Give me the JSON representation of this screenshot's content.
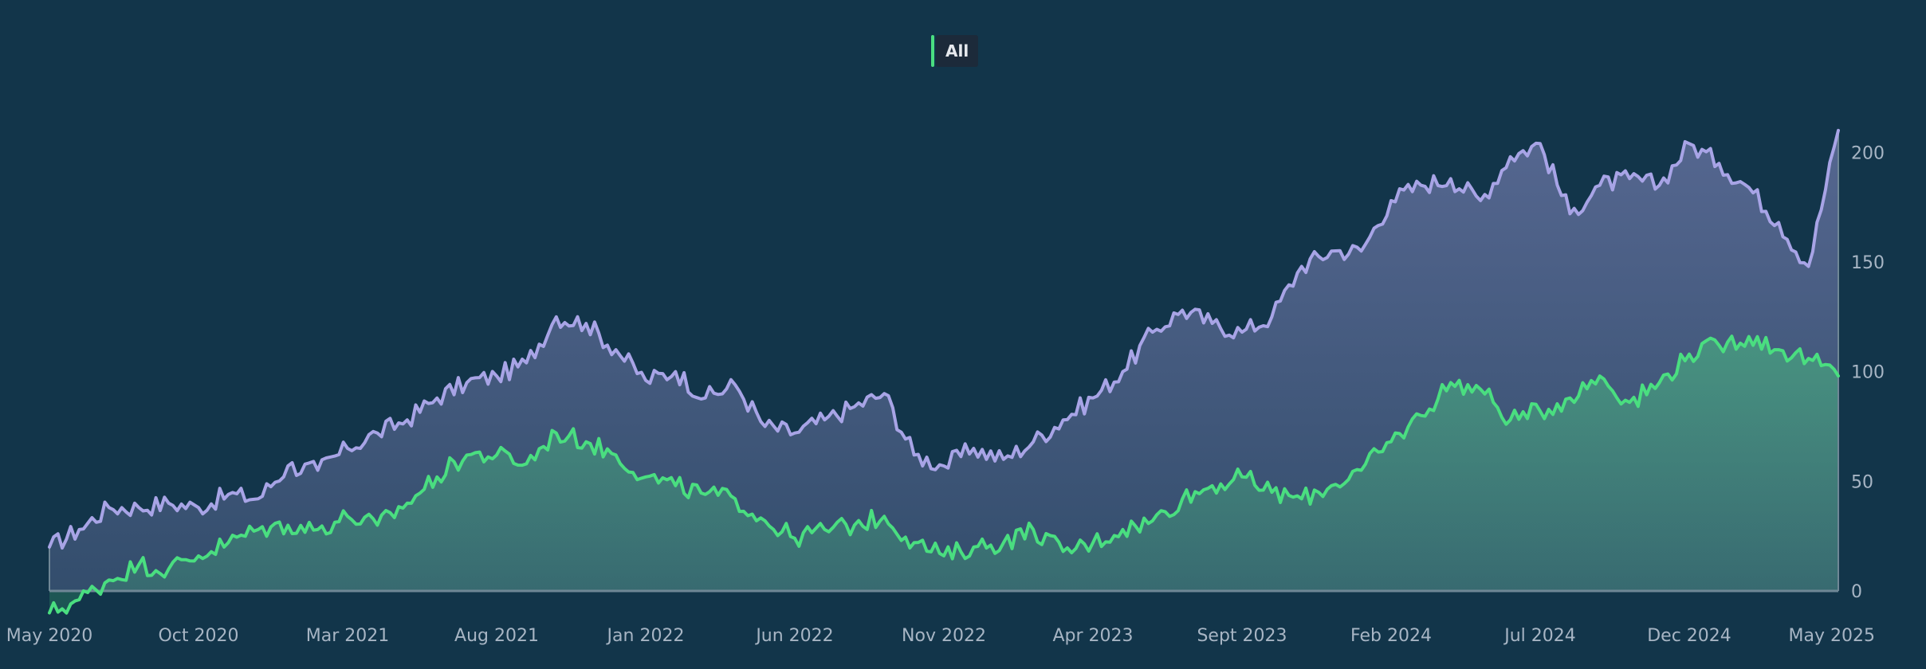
{
  "legend": {
    "label": "All"
  },
  "chart_data": {
    "type": "area",
    "title": "",
    "xlabel": "",
    "ylabel": "",
    "x_tick_labels": [
      "May 2020",
      "Oct 2020",
      "Mar 2021",
      "Aug 2021",
      "Jan 2022",
      "Jun 2022",
      "Nov 2022",
      "Apr 2023",
      "Sept 2023",
      "Feb 2024",
      "Jul 2024",
      "Dec 2024",
      "May 2025"
    ],
    "y_ticks": [
      0,
      50,
      100,
      150,
      200
    ],
    "ylim": [
      -12,
      215
    ],
    "y_axis_side": "right",
    "grid": false,
    "legend_position": "top-center",
    "colors": {
      "background": "#12354a",
      "series_1_line": "#a8a4e6",
      "series_2_line": "#4ade80",
      "axis_line": "#6f8796",
      "tick_text": "#a7b5c4"
    },
    "x": [
      "2020-05",
      "2020-06",
      "2020-07",
      "2020-08",
      "2020-09",
      "2020-10",
      "2020-11",
      "2020-12",
      "2021-01",
      "2021-02",
      "2021-03",
      "2021-04",
      "2021-05",
      "2021-06",
      "2021-07",
      "2021-08",
      "2021-09",
      "2021-10",
      "2021-11",
      "2021-12",
      "2022-01",
      "2022-02",
      "2022-03",
      "2022-04",
      "2022-05",
      "2022-06",
      "2022-07",
      "2022-08",
      "2022-09",
      "2022-10",
      "2022-11",
      "2022-12",
      "2023-01",
      "2023-02",
      "2023-03",
      "2023-04",
      "2023-05",
      "2023-06",
      "2023-07",
      "2023-08",
      "2023-09",
      "2023-10",
      "2023-11",
      "2023-12",
      "2024-01",
      "2024-02",
      "2024-03",
      "2024-04",
      "2024-05",
      "2024-06",
      "2024-07",
      "2024-08",
      "2024-09",
      "2024-10",
      "2024-11",
      "2024-12",
      "2025-01",
      "2025-02",
      "2025-03",
      "2025-04",
      "2025-05"
    ],
    "series": [
      {
        "values": [
          20,
          28,
          38,
          38,
          40,
          38,
          44,
          42,
          57,
          55,
          65,
          72,
          78,
          88,
          95,
          98,
          104,
          125,
          122,
          110,
          96,
          100,
          88,
          94,
          75,
          72,
          78,
          84,
          90,
          62,
          57,
          65,
          60,
          68,
          78,
          88,
          100,
          118,
          128,
          122,
          118,
          125,
          148,
          155,
          155,
          178,
          185,
          188,
          178,
          198,
          204,
          172,
          185,
          188,
          185,
          204,
          195,
          184,
          168,
          148,
          210
        ]
      },
      {
        "values": [
          -10,
          -4,
          5,
          12,
          10,
          16,
          22,
          28,
          30,
          28,
          34,
          30,
          40,
          52,
          62,
          62,
          58,
          72,
          68,
          62,
          52,
          48,
          44,
          42,
          32,
          24,
          28,
          30,
          34,
          22,
          16,
          20,
          22,
          28,
          18,
          22,
          28,
          32,
          42,
          48,
          52,
          45,
          42,
          48,
          55,
          68,
          80,
          95,
          92,
          78,
          82,
          88,
          98,
          86,
          95,
          108,
          112,
          116,
          110,
          106,
          98
        ]
      }
    ]
  }
}
